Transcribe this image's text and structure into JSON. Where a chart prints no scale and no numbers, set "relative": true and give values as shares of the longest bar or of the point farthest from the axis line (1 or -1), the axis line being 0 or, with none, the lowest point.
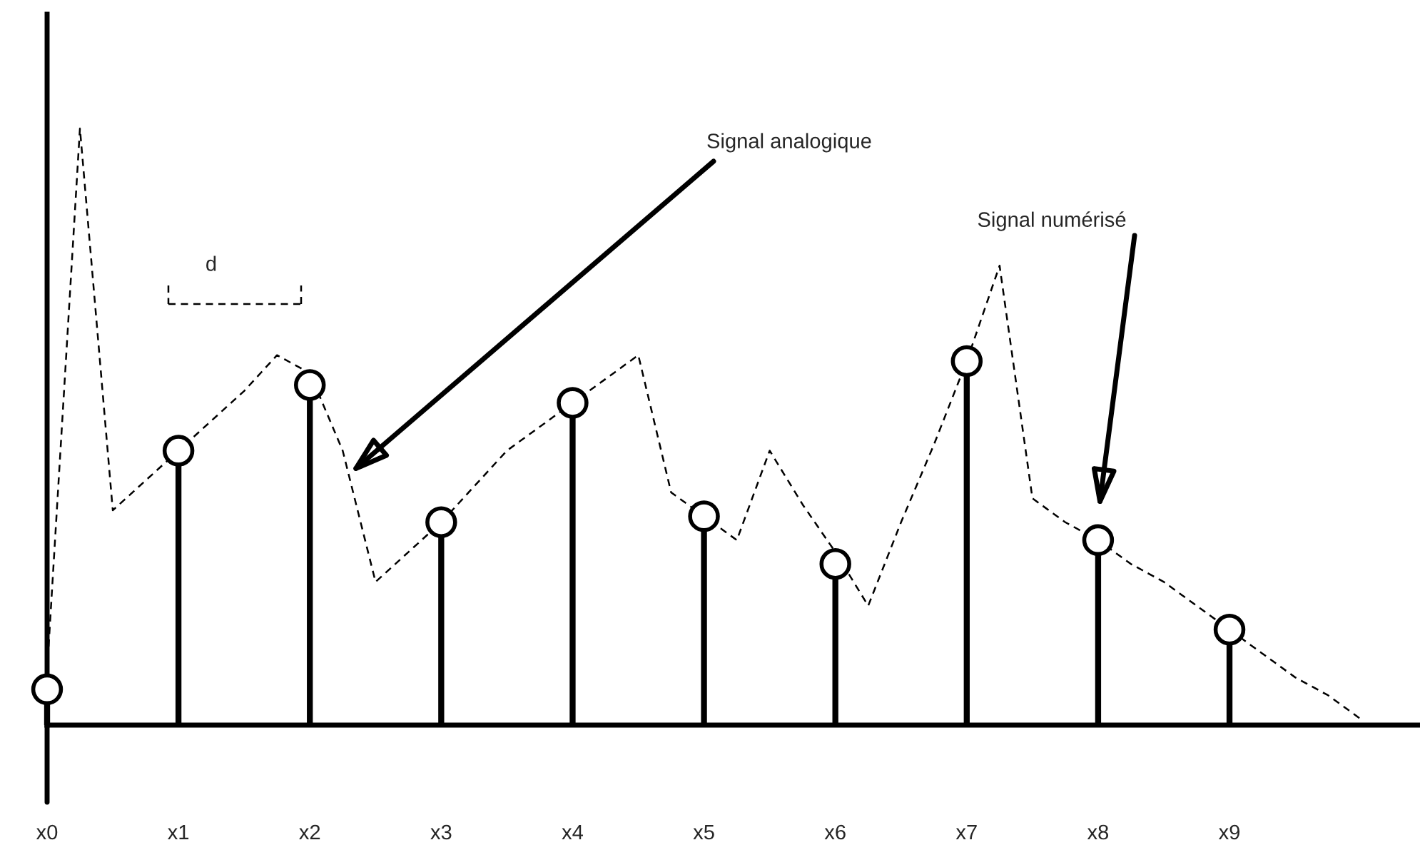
{
  "chart_data": {
    "type": "lollipop",
    "relative": true,
    "categories": [
      "x0",
      null,
      null,
      null,
      "x1",
      null,
      null,
      null,
      "x2",
      null,
      null,
      null,
      "x3",
      null,
      null,
      null,
      "x4",
      null,
      null,
      null,
      "x5",
      null,
      null,
      null,
      "x6",
      null,
      null,
      null,
      "x7",
      null,
      null,
      null,
      "x8",
      null,
      null,
      null,
      "x9",
      null,
      null,
      null,
      null
    ],
    "series": [
      {
        "color": "#000000",
        "marker": "circle",
        "values": [
          0.06,
          null,
          null,
          null,
          0.46,
          null,
          null,
          null,
          0.57,
          null,
          null,
          null,
          0.34,
          null,
          null,
          null,
          0.54,
          null,
          null,
          null,
          0.35,
          null,
          null,
          null,
          0.27,
          null,
          null,
          null,
          0.61,
          null,
          null,
          null,
          0.31,
          null,
          null,
          null,
          0.16,
          null,
          null,
          null,
          null
        ]
      },
      {
        "type": "line",
        "color": "#000000",
        "line_style": "dashed",
        "marker": "none",
        "values": [
          0.09,
          1.0,
          0.36,
          0.41,
          0.46,
          0.51,
          0.56,
          0.62,
          0.59,
          0.46,
          0.24,
          0.29,
          0.34,
          0.4,
          0.46,
          0.5,
          0.54,
          0.58,
          0.62,
          0.39,
          0.35,
          0.31,
          0.46,
          0.37,
          0.29,
          0.2,
          0.34,
          0.47,
          0.61,
          0.77,
          0.38,
          0.34,
          0.31,
          0.27,
          0.24,
          0.2,
          0.16,
          0.12,
          0.08,
          0.05,
          0.01
        ]
      }
    ],
    "annotations": [
      "Signal analogique",
      "Signal numérisé",
      "d"
    ],
    "legend": false
  }
}
